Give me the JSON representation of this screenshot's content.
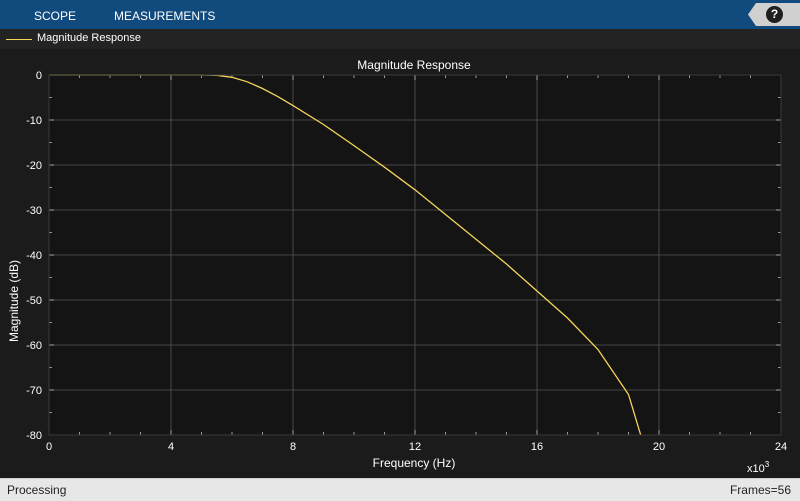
{
  "toolstrip": {
    "tabs": [
      "SCOPE",
      "MEASUREMENTS"
    ],
    "help_label": "?"
  },
  "legend": {
    "entry": "Magnitude Response"
  },
  "plot": {
    "title": "Magnitude Response",
    "xlabel": "Frequency (Hz)",
    "ylabel": "Magnitude (dB)",
    "x_multiplier": "x10",
    "x_multiplier_exp": "3"
  },
  "status": {
    "left": "Processing",
    "right": "Frames=56"
  },
  "colors": {
    "toolstrip": "#114a7d",
    "trace": "#f4d55a",
    "axes_bg": "#141414",
    "grid": "#555555"
  },
  "chart_data": {
    "type": "line",
    "title": "Magnitude Response",
    "xlabel": "Frequency (Hz)",
    "ylabel": "Magnitude (dB)",
    "xlim": [
      0,
      24
    ],
    "ylim": [
      -80,
      0
    ],
    "xticks": [
      0,
      4,
      8,
      12,
      16,
      20,
      24
    ],
    "yticks": [
      0,
      -10,
      -20,
      -30,
      -40,
      -50,
      -60,
      -70,
      -80
    ],
    "x_scale_label": "x10^3",
    "grid": true,
    "legend_position": "top-left",
    "series": [
      {
        "name": "Magnitude Response",
        "color": "#f4d55a",
        "x": [
          0,
          1,
          2,
          3,
          4,
          5,
          5.5,
          6,
          6.5,
          7,
          7.5,
          8,
          9,
          10,
          11,
          12,
          13,
          14,
          15,
          16,
          17,
          18,
          19,
          19.4
        ],
        "y": [
          0,
          0,
          0,
          0,
          0,
          0,
          -0.1,
          -0.5,
          -1.5,
          -3,
          -4.8,
          -6.8,
          -11,
          -15.7,
          -20.5,
          -25.5,
          -31,
          -36.5,
          -42,
          -48,
          -54,
          -61,
          -71,
          -80
        ]
      }
    ]
  }
}
